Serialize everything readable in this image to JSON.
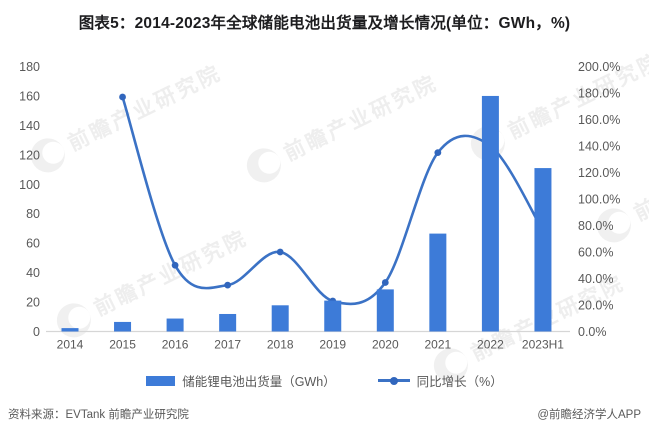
{
  "title": "图表5：2014-2023年全球储能电池出货量及增长情况(单位：GWh，%)",
  "chart_data": {
    "type": "bar+line combo",
    "categories": [
      "2014",
      "2015",
      "2016",
      "2017",
      "2018",
      "2019",
      "2020",
      "2021",
      "2022",
      "2023H1"
    ],
    "series": [
      {
        "name": "储能锂电池出货量（GWh）",
        "type": "bar",
        "axis": "left",
        "values": [
          2.3,
          6.5,
          8.8,
          11.9,
          17.8,
          21.0,
          28.6,
          66.5,
          160.0,
          111.0
        ]
      },
      {
        "name": "同比增长（%）",
        "type": "line",
        "axis": "right",
        "values": [
          null,
          177,
          50,
          35,
          60,
          23,
          37,
          135,
          140,
          76
        ]
      }
    ],
    "left_axis": {
      "min": 0,
      "max": 180,
      "step": 20,
      "ticks": [
        "0",
        "20",
        "40",
        "60",
        "80",
        "100",
        "120",
        "140",
        "160",
        "180"
      ]
    },
    "right_axis": {
      "min": 0,
      "max": 200,
      "step": 20,
      "ticks": [
        "0.0%",
        "20.0%",
        "40.0%",
        "60.0%",
        "80.0%",
        "100.0%",
        "120.0%",
        "140.0%",
        "160.0%",
        "180.0%",
        "200.0%"
      ]
    },
    "grid": "off",
    "legend_position": "bottom",
    "line_smooth": true
  },
  "legend": {
    "bar_label": "储能锂电池出货量（GWh）",
    "line_label": "同比增长（%）"
  },
  "watermark": {
    "text": "前瞻产业研究院"
  },
  "footer": {
    "source": "资料来源：EVTank 前瞻产业研究院",
    "credit": "@前瞻经济学人APP"
  },
  "colors": {
    "bar": "#3d7bd8",
    "line": "#3b72c5",
    "marker": "#3166bd",
    "axis_line": "#d6d6d6",
    "axis_text": "#595959",
    "title_text": "#1d1d1f",
    "footer_text": "#595959",
    "watermark": "#e1e1e1"
  }
}
